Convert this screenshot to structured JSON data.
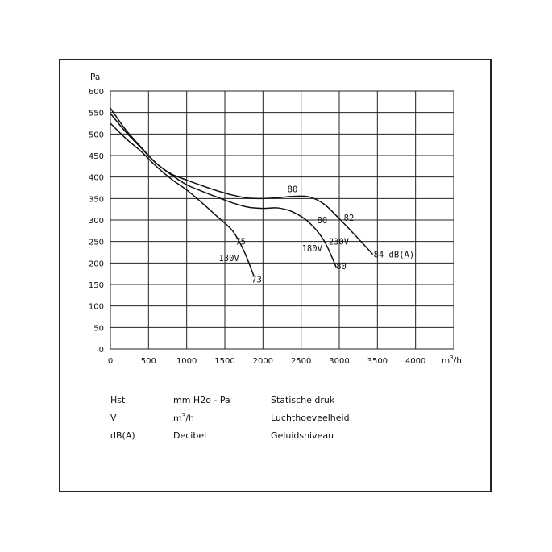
{
  "chart_data": {
    "type": "line",
    "ylabel": "Pa",
    "xlabel_base": "m",
    "xlabel_sup": "3",
    "xlabel_tail": "/h",
    "xlim": [
      0,
      4500
    ],
    "ylim": [
      0,
      600
    ],
    "x_ticks": [
      0,
      500,
      1000,
      1500,
      2000,
      2500,
      3000,
      3500,
      4000
    ],
    "y_ticks": [
      0,
      50,
      100,
      150,
      200,
      250,
      300,
      350,
      400,
      450,
      500,
      550,
      600
    ],
    "grid": true,
    "series": [
      {
        "points": [
          [
            0,
            525
          ],
          [
            200,
            490
          ],
          [
            400,
            460
          ],
          [
            600,
            425
          ],
          [
            800,
            395
          ],
          [
            1000,
            370
          ],
          [
            1200,
            340
          ],
          [
            1400,
            308
          ],
          [
            1600,
            275
          ],
          [
            1750,
            228
          ],
          [
            1880,
            170
          ]
        ]
      },
      {
        "points": [
          [
            0,
            548
          ],
          [
            200,
            505
          ],
          [
            400,
            468
          ],
          [
            600,
            432
          ],
          [
            800,
            405
          ],
          [
            1000,
            382
          ],
          [
            1200,
            367
          ],
          [
            1400,
            353
          ],
          [
            1600,
            340
          ],
          [
            1800,
            330
          ],
          [
            2000,
            327
          ],
          [
            2200,
            328
          ],
          [
            2400,
            318
          ],
          [
            2600,
            295
          ],
          [
            2800,
            252
          ],
          [
            2960,
            190
          ]
        ]
      },
      {
        "points": [
          [
            0,
            560
          ],
          [
            200,
            510
          ],
          [
            400,
            470
          ],
          [
            600,
            432
          ],
          [
            800,
            407
          ],
          [
            1000,
            393
          ],
          [
            1200,
            380
          ],
          [
            1400,
            368
          ],
          [
            1600,
            358
          ],
          [
            1800,
            351
          ],
          [
            2000,
            350
          ],
          [
            2200,
            352
          ],
          [
            2400,
            355
          ],
          [
            2600,
            354
          ],
          [
            2800,
            337
          ],
          [
            3000,
            303
          ],
          [
            3200,
            266
          ],
          [
            3440,
            220
          ]
        ]
      }
    ],
    "annotations": [
      {
        "text": "130V",
        "x": 1420,
        "y": 212
      },
      {
        "text": "75",
        "x": 1640,
        "y": 250
      },
      {
        "text": "73",
        "x": 1850,
        "y": 162
      },
      {
        "text": "180V",
        "x": 2510,
        "y": 234
      },
      {
        "text": "80",
        "x": 2320,
        "y": 372
      },
      {
        "text": "80",
        "x": 2710,
        "y": 300
      },
      {
        "text": "230V",
        "x": 2860,
        "y": 250
      },
      {
        "text": "82",
        "x": 3060,
        "y": 306
      },
      {
        "text": "80",
        "x": 2960,
        "y": 193
      },
      {
        "text": "84 dB(A)",
        "x": 3450,
        "y": 220
      }
    ]
  },
  "legend": {
    "rows": [
      {
        "symbol": "Hst",
        "unit": "mm H2o - Pa",
        "desc": "Statische druk"
      },
      {
        "symbol": "V",
        "unit_base": "m",
        "unit_sup": "3",
        "unit_tail": "/h",
        "desc": "Luchthoeveelheid"
      },
      {
        "symbol": "dB(A)",
        "unit": "Decibel",
        "desc": "Geluidsniveau"
      }
    ]
  }
}
